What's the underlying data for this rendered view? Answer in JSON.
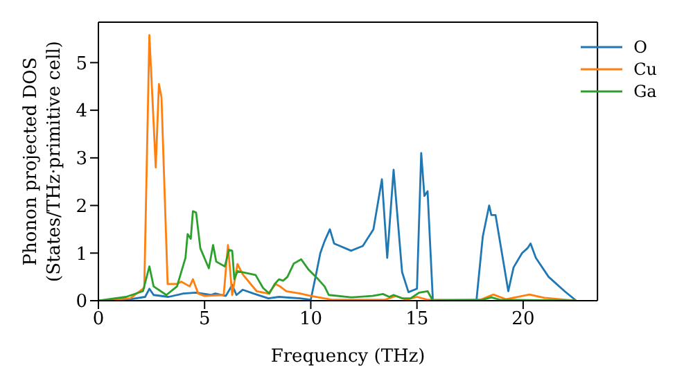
{
  "chart_data": {
    "type": "line",
    "xlabel": "Frequency (THz)",
    "ylabel": "Phonon projected DOS\n(States/THz·primitive cell)",
    "xlim": [
      0,
      23.5
    ],
    "xticks": [
      0,
      5,
      10,
      15,
      20
    ],
    "ylim": [
      0,
      5.85
    ],
    "yticks": [
      0,
      1,
      2,
      3,
      4,
      5
    ],
    "grid": false,
    "legend": "top right",
    "marker": "none",
    "line_style": "solid",
    "series": [
      {
        "name": "O",
        "color": "#1f77b4",
        "x": [
          0,
          1.5,
          2.2,
          2.4,
          2.6,
          3.3,
          4,
          4.6,
          5.3,
          5.5,
          6,
          6.3,
          6.5,
          6.8,
          7.3,
          8,
          8.5,
          9.5,
          10,
          10.27,
          10.45,
          10.65,
          10.9,
          11.1,
          11.9,
          12.45,
          12.95,
          13.35,
          13.6,
          13.9,
          14.3,
          14.6,
          15,
          15.2,
          15.35,
          15.5,
          15.75,
          17.8,
          18.1,
          18.4,
          18.5,
          18.7,
          19.3,
          19.55,
          19.95,
          20.2,
          20.35,
          20.6,
          21.2,
          21.95,
          22.5
        ],
        "values": [
          0,
          0.03,
          0.08,
          0.25,
          0.12,
          0.08,
          0.15,
          0.17,
          0.12,
          0.15,
          0.1,
          0.33,
          0.12,
          0.23,
          0.15,
          0.05,
          0.08,
          0.05,
          0.02,
          0.6,
          1.0,
          1.25,
          1.5,
          1.2,
          1.05,
          1.15,
          1.5,
          2.55,
          0.9,
          2.75,
          0.6,
          0.18,
          0.25,
          3.1,
          2.2,
          2.3,
          0,
          0,
          1.35,
          2.0,
          1.8,
          1.8,
          0.2,
          0.7,
          1.0,
          1.1,
          1.2,
          0.9,
          0.5,
          0.2,
          0
        ]
      },
      {
        "name": "Cu",
        "color": "#ff7f0e",
        "x": [
          0,
          1.5,
          2.16,
          2.4,
          2.7,
          2.85,
          2.97,
          3.26,
          3.7,
          3.9,
          4.3,
          4.45,
          4.7,
          5,
          5.9,
          6.1,
          6.3,
          6.55,
          6.8,
          7.45,
          8,
          8.35,
          8.55,
          8.85,
          9.5,
          10,
          11,
          13.5,
          14,
          14.5,
          15,
          15.5,
          18,
          18.6,
          19.2,
          20.3,
          21,
          22,
          22.5
        ],
        "values": [
          0,
          0.05,
          0.27,
          5.58,
          2.8,
          4.55,
          4.27,
          0.35,
          0.35,
          0.4,
          0.3,
          0.45,
          0.15,
          0.1,
          0.12,
          1.17,
          0.12,
          0.77,
          0.55,
          0.2,
          0.15,
          0.35,
          0.3,
          0.2,
          0.15,
          0.1,
          0.02,
          0.02,
          0.1,
          0.02,
          0.08,
          0.02,
          0.02,
          0.13,
          0.03,
          0.13,
          0.06,
          0.02,
          0
        ]
      },
      {
        "name": "Ga",
        "color": "#2ca02c",
        "x": [
          0,
          1.3,
          2.1,
          2.4,
          2.6,
          3.2,
          3.7,
          4.1,
          4.2,
          4.35,
          4.45,
          4.6,
          4.8,
          5.2,
          5.4,
          5.55,
          5.95,
          6.15,
          6.3,
          6.4,
          6.55,
          7.4,
          7.75,
          8.05,
          8.3,
          8.5,
          8.7,
          8.9,
          9.2,
          9.55,
          9.9,
          10.35,
          10.65,
          10.85,
          11.9,
          12.9,
          13.4,
          13.7,
          13.9,
          14.3,
          14.7,
          15.1,
          15.5,
          15.75,
          18.1,
          18.5,
          18.9,
          22.5
        ],
        "values": [
          0,
          0.08,
          0.2,
          0.72,
          0.3,
          0.12,
          0.3,
          0.9,
          1.4,
          1.3,
          1.88,
          1.85,
          1.1,
          0.68,
          1.17,
          0.82,
          0.72,
          1.07,
          1.05,
          0.45,
          0.62,
          0.54,
          0.27,
          0.15,
          0.35,
          0.45,
          0.42,
          0.5,
          0.78,
          0.87,
          0.65,
          0.45,
          0.3,
          0.12,
          0.07,
          0.1,
          0.14,
          0.08,
          0.12,
          0.05,
          0.05,
          0.17,
          0.2,
          0,
          0.02,
          0.07,
          0.02,
          0
        ]
      }
    ]
  }
}
